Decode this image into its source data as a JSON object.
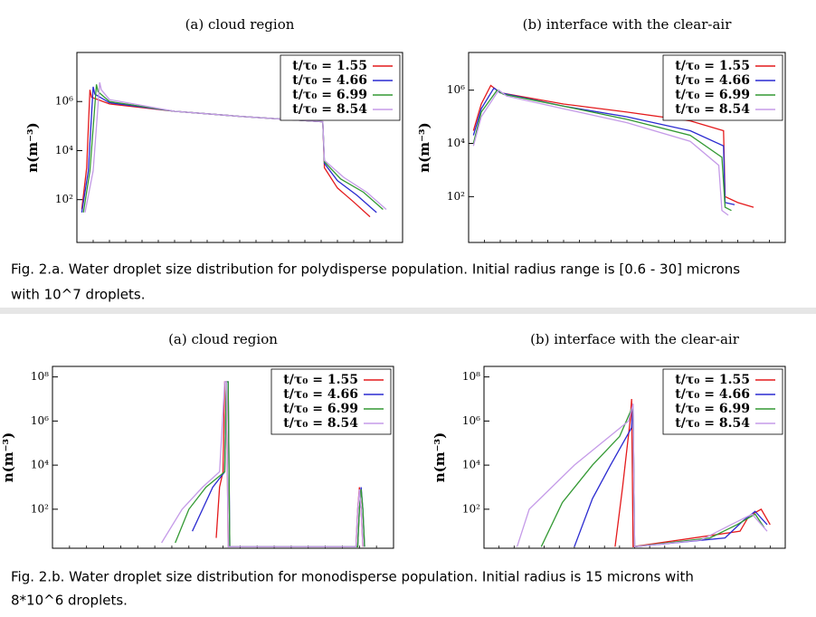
{
  "chart_data": [
    {
      "type": "line",
      "title": "(a) cloud region",
      "ylabel": "n(m⁻³)",
      "log_y": true,
      "xlim": [
        0,
        100
      ],
      "ylim": [
        1.8,
        100000000
      ],
      "yticks": [
        {
          "value": 100,
          "label": "10²"
        },
        {
          "value": 10000,
          "label": "10⁴"
        },
        {
          "value": 1000000,
          "label": "10⁶"
        }
      ],
      "legend": "upper right",
      "series": [
        {
          "name": "t/τ₀ = 1.55",
          "color": "#e41a1c",
          "x": [
            1.5,
            3,
            4,
            4.5,
            10,
            30,
            50,
            75.5,
            76,
            80,
            85,
            90
          ],
          "values": [
            40,
            2000,
            3000000,
            1500000,
            800000,
            400000,
            250000,
            150000,
            2000,
            300,
            80,
            20
          ]
        },
        {
          "name": "t/τ₀ = 4.66",
          "color": "#2a2ad0",
          "x": [
            1.5,
            3.5,
            5,
            5.5,
            10,
            30,
            50,
            75.5,
            76,
            80,
            86,
            92
          ],
          "values": [
            30,
            1500,
            4000000,
            2000000,
            900000,
            400000,
            250000,
            150000,
            3000,
            600,
            150,
            30
          ]
        },
        {
          "name": "t/τ₀ = 6.99",
          "color": "#339933",
          "x": [
            2,
            4,
            6,
            6.5,
            10,
            30,
            50,
            75.5,
            76,
            81,
            88,
            94
          ],
          "values": [
            30,
            1500,
            5000000,
            2500000,
            1000000,
            400000,
            250000,
            150000,
            3500,
            700,
            200,
            40
          ]
        },
        {
          "name": "t/τ₀ = 8.54",
          "color": "#c59be8",
          "x": [
            2.5,
            5,
            7,
            7.5,
            10,
            30,
            50,
            75.5,
            76,
            82,
            89,
            95
          ],
          "values": [
            30,
            1500,
            6000000,
            3000000,
            1200000,
            400000,
            250000,
            150000,
            4000,
            800,
            200,
            40
          ]
        }
      ]
    },
    {
      "type": "line",
      "title": "(b) interface with the clear-air",
      "ylabel": "n(m⁻³)",
      "log_y": true,
      "xlim": [
        0,
        100
      ],
      "ylim": [
        1.9,
        26000000
      ],
      "yticks": [
        {
          "value": 100,
          "label": "10²"
        },
        {
          "value": 10000,
          "label": "10⁴"
        },
        {
          "value": 1000000,
          "label": "10⁶"
        }
      ],
      "legend": "upper right",
      "series": [
        {
          "name": "t/τ₀ = 1.55",
          "color": "#e41a1c",
          "x": [
            1.5,
            4,
            7,
            10,
            30,
            50,
            70,
            80.5,
            81,
            85,
            90
          ],
          "values": [
            30000,
            300000,
            1500000,
            800000,
            300000,
            150000,
            70000,
            30000,
            100,
            60,
            40
          ]
        },
        {
          "name": "t/τ₀ = 4.66",
          "color": "#2a2ad0",
          "x": [
            1.5,
            4,
            8,
            10,
            30,
            50,
            70,
            80.5,
            81,
            84
          ],
          "values": [
            20000,
            200000,
            1200000,
            800000,
            250000,
            100000,
            30000,
            8000,
            60,
            50
          ]
        },
        {
          "name": "t/τ₀ = 6.99",
          "color": "#339933",
          "x": [
            1.5,
            4,
            9,
            11,
            30,
            50,
            70,
            80,
            81,
            83
          ],
          "values": [
            10000,
            150000,
            1000000,
            700000,
            250000,
            80000,
            20000,
            3000,
            40,
            30
          ]
        },
        {
          "name": "t/τ₀ = 8.54",
          "color": "#c59be8",
          "x": [
            1.5,
            4,
            9.5,
            12,
            30,
            50,
            70,
            79,
            80,
            82
          ],
          "values": [
            8000,
            100000,
            1000000,
            600000,
            200000,
            60000,
            12000,
            1500,
            30,
            20
          ]
        }
      ]
    },
    {
      "type": "line",
      "title": "(a) cloud region",
      "ylabel": "n(m⁻³)",
      "log_y": true,
      "xlim": [
        0,
        100
      ],
      "ylim": [
        1.7,
        300000000
      ],
      "yticks": [
        {
          "value": 100,
          "label": "10²"
        },
        {
          "value": 10000,
          "label": "10⁴"
        },
        {
          "value": 1000000,
          "label": "10⁶"
        },
        {
          "value": 100000000,
          "label": "10⁸"
        }
      ],
      "legend": "upper right",
      "series": [
        {
          "name": "t/τ₀ = 1.55",
          "color": "#e41a1c",
          "x": [
            48,
            49,
            50,
            50.5,
            51,
            51.5,
            89,
            89.5,
            90,
            90.5,
            91
          ],
          "values": [
            5,
            1000,
            5000,
            60000000,
            60000000,
            2,
            2,
            100,
            1000,
            100,
            2
          ]
        },
        {
          "name": "t/τ₀ = 4.66",
          "color": "#2a2ad0",
          "x": [
            41,
            44,
            47,
            50.5,
            51,
            51.5,
            52,
            89.5,
            90,
            90.5,
            91,
            91.5
          ],
          "values": [
            10,
            100,
            1000,
            5000,
            60000000,
            60000000,
            2,
            2,
            100,
            1000,
            100,
            2
          ]
        },
        {
          "name": "t/τ₀ = 6.99",
          "color": "#339933",
          "x": [
            36,
            40,
            45,
            50.5,
            51,
            51.5,
            52,
            89.5,
            90,
            90.5,
            91,
            91.5
          ],
          "values": [
            3,
            100,
            1000,
            5000,
            60000000,
            60000000,
            2,
            2,
            100,
            800,
            100,
            2
          ]
        },
        {
          "name": "t/τ₀ = 8.54",
          "color": "#c59be8",
          "x": [
            32,
            38,
            44,
            49,
            50.5,
            51,
            51.5,
            89,
            89.5,
            90,
            90.5,
            91
          ],
          "values": [
            3,
            100,
            1000,
            5000,
            60000000,
            60000000,
            2,
            2,
            100,
            800,
            100,
            2
          ]
        }
      ]
    },
    {
      "type": "line",
      "title": "(b) interface with the clear-air",
      "ylabel": "n(m⁻³)",
      "log_y": true,
      "xlim": [
        0,
        100
      ],
      "ylim": [
        1.7,
        300000000
      ],
      "yticks": [
        {
          "value": 100,
          "label": "10²"
        },
        {
          "value": 10000,
          "label": "10⁴"
        },
        {
          "value": 1000000,
          "label": "10⁶"
        },
        {
          "value": 100000000,
          "label": "10⁸"
        }
      ],
      "legend": "upper right",
      "series": [
        {
          "name": "t/τ₀ = 1.55",
          "color": "#e41a1c",
          "x": [
            43.5,
            46,
            48.5,
            49,
            49.5,
            85,
            88,
            92,
            95
          ],
          "values": [
            2,
            1000,
            1000000,
            10000000,
            2,
            10,
            50,
            100,
            20
          ]
        },
        {
          "name": "t/τ₀ = 4.66",
          "color": "#2a2ad0",
          "x": [
            30,
            36,
            42,
            49,
            49.5,
            50,
            80,
            86,
            90,
            94
          ],
          "values": [
            2,
            300,
            10000,
            500000,
            6000000,
            2,
            5,
            30,
            80,
            20
          ]
        },
        {
          "name": "t/τ₀ = 6.99",
          "color": "#339933",
          "x": [
            19,
            26,
            36,
            45,
            49.5,
            50,
            75,
            84,
            90,
            93
          ],
          "values": [
            2,
            200,
            10000,
            200000,
            5000000,
            2,
            5,
            20,
            60,
            15
          ]
        },
        {
          "name": "t/τ₀ = 8.54",
          "color": "#c59be8",
          "x": [
            11,
            15,
            30,
            48,
            49.5,
            50,
            72,
            82,
            89,
            94
          ],
          "values": [
            2,
            100,
            10000,
            1000000,
            6000000,
            2,
            4,
            20,
            60,
            10
          ]
        }
      ]
    }
  ],
  "captions": [
    [
      "Fig. 2.a. Water droplet size distribution for polydisperse population. Initial radius range is [0.6 - 30] microns",
      "with 10^7 droplets."
    ],
    [
      "Fig. 2.b. Water droplet size distribution for monodisperse population. Initial radius is 15 microns with",
      "8*10^6 droplets."
    ]
  ]
}
